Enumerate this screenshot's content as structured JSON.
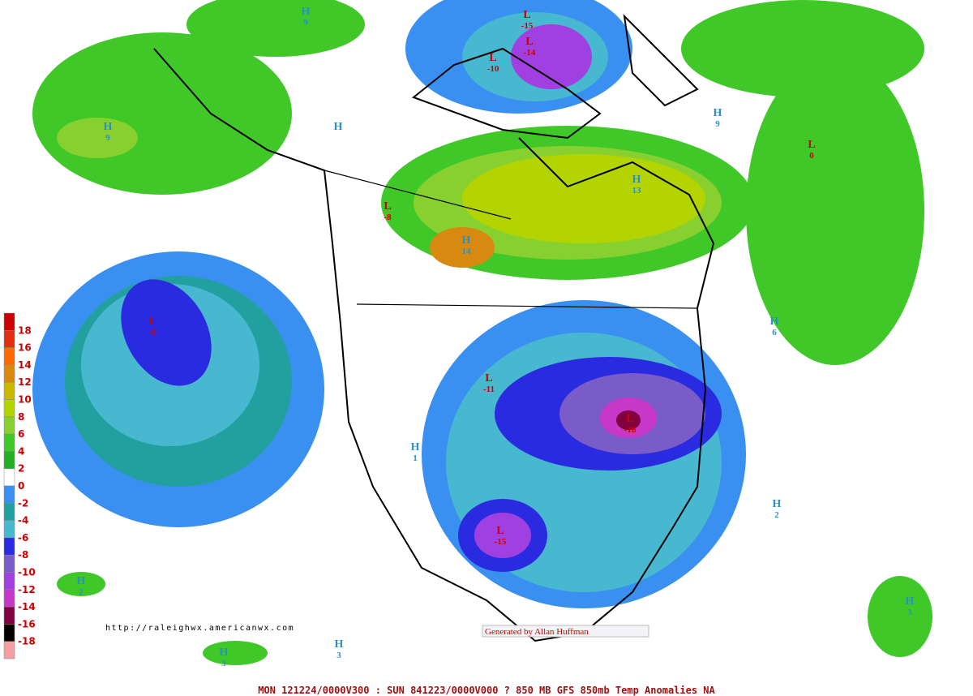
{
  "map": {
    "legend": {
      "labels": [
        18,
        16,
        14,
        12,
        10,
        8,
        6,
        4,
        2,
        0,
        -2,
        -4,
        -6,
        -8,
        -10,
        -12,
        -14,
        -16,
        -18
      ],
      "colors": [
        "#cc0000",
        "#e03010",
        "#ff6a00",
        "#d88a10",
        "#c8b800",
        "#b4d400",
        "#88d030",
        "#40c828",
        "#20b020",
        "#ffffff",
        "#3a90f0",
        "#22a0a0",
        "#48b8d0",
        "#2a2ae0",
        "#7a5cc8",
        "#a040e0",
        "#c838c8",
        "#800040",
        "#000000",
        "#f4a0a0"
      ]
    },
    "centers": [
      {
        "letter": "H",
        "value": 9
      },
      {
        "letter": "L",
        "value": -15
      },
      {
        "letter": "L",
        "value": -14
      },
      {
        "letter": "L",
        "value": -10
      },
      {
        "letter": "H",
        "value": 9
      },
      {
        "letter": "H"
      },
      {
        "letter": "H",
        "value": 9
      },
      {
        "letter": "L",
        "value": 0
      },
      {
        "letter": "H",
        "value": 13
      },
      {
        "letter": "L",
        "value": -8
      },
      {
        "letter": "H",
        "value": 14
      },
      {
        "letter": "L",
        "value": -9
      },
      {
        "letter": "H",
        "value": 6
      },
      {
        "letter": "L",
        "value": -11
      },
      {
        "letter": "L",
        "value": -18
      },
      {
        "letter": "H",
        "value": 1
      },
      {
        "letter": "H",
        "value": 2
      },
      {
        "letter": "L",
        "value": -15
      },
      {
        "letter": "H",
        "value": 2
      },
      {
        "letter": "H",
        "value": 3
      },
      {
        "letter": "H",
        "value": 3
      },
      {
        "letter": "H",
        "value": 3
      }
    ],
    "url": "http://raleighwx.americanwx.com",
    "credit": "Generated by Allan Huffman",
    "footer": "MON 121224/0000V300 : SUN 841223/0000V000  ? 850 MB GFS 850mb Temp Anomalies NA"
  }
}
